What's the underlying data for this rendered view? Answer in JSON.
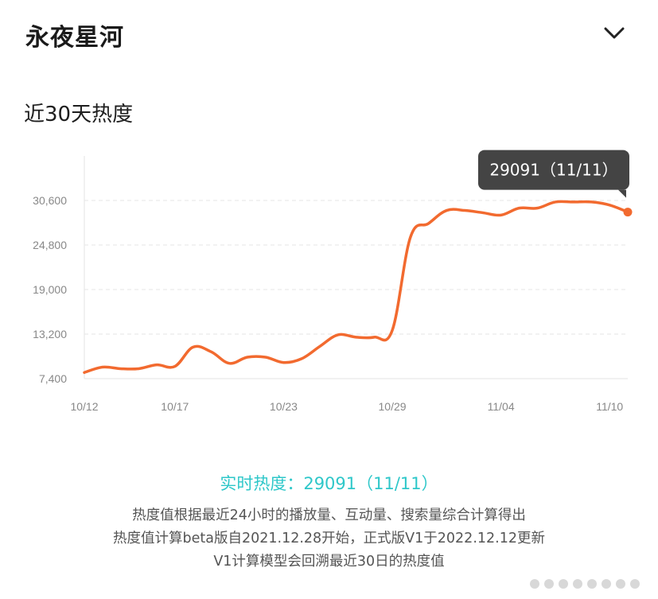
{
  "header": {
    "title": "永夜星河",
    "collapse_icon": "chevron-down-icon"
  },
  "section": {
    "title": "近30天热度"
  },
  "chart_data": {
    "type": "line",
    "title": "近30天热度",
    "x_tick_labels": [
      "10/12",
      "10/17",
      "10/23",
      "10/29",
      "11/04",
      "11/10"
    ],
    "y_ticks": [
      7400,
      13200,
      19000,
      24800,
      30600
    ],
    "y_tick_labels": [
      "7,400",
      "13,200",
      "19,000",
      "24,800",
      "30,600"
    ],
    "ylim": [
      7400,
      36400
    ],
    "grid": true,
    "line_color": "#f26a2f",
    "series": [
      {
        "x": [
          "10/12",
          "10/13",
          "10/14",
          "10/15",
          "10/16",
          "10/17",
          "10/18",
          "10/19",
          "10/20",
          "10/21",
          "10/22",
          "10/23",
          "10/24",
          "10/25",
          "10/26",
          "10/27",
          "10/28",
          "10/29",
          "10/30",
          "10/31",
          "11/01",
          "11/02",
          "11/03",
          "11/04",
          "11/05",
          "11/06",
          "11/07",
          "11/08",
          "11/09",
          "11/10",
          "11/11"
        ],
        "values": [
          8200,
          8900,
          8700,
          8700,
          9200,
          9000,
          11500,
          10900,
          9400,
          10200,
          10200,
          9500,
          10000,
          11600,
          13100,
          12800,
          12800,
          13700,
          25800,
          27600,
          29300,
          29300,
          29000,
          28700,
          29600,
          29600,
          30400,
          30400,
          30400,
          30000,
          29091
        ]
      }
    ],
    "tooltip": {
      "label": "29091（11/11）"
    }
  },
  "footer": {
    "realtime_label": "实时热度：",
    "realtime_value": "29091（11/11）",
    "notes": [
      "热度值根据最近24小时的播放量、互动量、搜索量综合计算得出",
      "热度值计算beta版自2021.12.28开始，正式版V1于2022.12.12更新",
      "V1计算模型会回溯最近30日的热度值"
    ]
  }
}
